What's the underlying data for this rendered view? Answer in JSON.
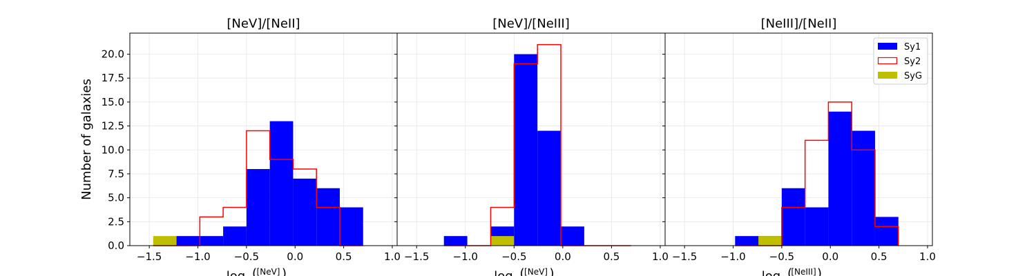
{
  "chart_data": [
    {
      "type": "bar",
      "title": "[NeV]/[NeII]",
      "ylabel": "Number of galaxies",
      "xlabel_prefix": "log",
      "xlabel_ratio": "[NeV]",
      "xlim": [
        -1.7,
        1.05
      ],
      "ylim": [
        0,
        22.2
      ],
      "xticks": [
        "−1.5",
        "−1.0",
        "−0.5",
        "0.0",
        "0.5",
        "1.0"
      ],
      "xtick_values": [
        -1.5,
        -1.0,
        -0.5,
        0.0,
        0.5,
        1.0
      ],
      "yticks": [
        "0.0",
        "2.5",
        "5.0",
        "7.5",
        "10.0",
        "12.5",
        "15.0",
        "17.5",
        "20.0"
      ],
      "ytick_values": [
        0,
        2.5,
        5,
        7.5,
        10,
        12.5,
        15,
        17.5,
        20
      ],
      "grid": true,
      "bin_edges": [
        -1.46,
        -1.22,
        -0.98,
        -0.74,
        -0.5,
        -0.26,
        -0.02,
        0.22,
        0.46,
        0.7
      ],
      "series": [
        {
          "name": "Sy1",
          "style": "filled",
          "color": "#0000ff",
          "values": [
            0,
            1,
            1,
            2,
            8,
            13,
            7,
            6,
            4
          ]
        },
        {
          "name": "Sy2",
          "style": "step",
          "color": "#ff0000",
          "values": [
            0,
            0,
            3,
            4,
            12,
            9,
            8,
            4,
            0
          ]
        },
        {
          "name": "SyG",
          "style": "filled",
          "color": "#bfbf00",
          "values": [
            1,
            0,
            0,
            0,
            0,
            0,
            0,
            0,
            0
          ]
        }
      ]
    },
    {
      "type": "bar",
      "title": "[NeV]/[NeIII]",
      "xlabel_prefix": "log",
      "xlabel_ratio": "[NeV]",
      "xlim": [
        -1.7,
        1.05
      ],
      "ylim": [
        0,
        22.2
      ],
      "xticks": [
        "−1.5",
        "−1.0",
        "−0.5",
        "0.0",
        "0.5",
        "1.0"
      ],
      "xtick_values": [
        -1.5,
        -1.0,
        -0.5,
        0.0,
        0.5,
        1.0
      ],
      "grid": true,
      "bin_edges": [
        -1.22,
        -0.98,
        -0.74,
        -0.5,
        -0.26,
        -0.02,
        0.22,
        0.46,
        0.7
      ],
      "series": [
        {
          "name": "Sy1",
          "style": "filled",
          "color": "#0000ff",
          "values": [
            1,
            0,
            2,
            20,
            12,
            2,
            0,
            0
          ]
        },
        {
          "name": "Sy2",
          "style": "step",
          "color": "#ff0000",
          "values": [
            0,
            0,
            4,
            19,
            21,
            0,
            0,
            0
          ]
        },
        {
          "name": "SyG",
          "style": "filled",
          "color": "#bfbf00",
          "values": [
            0,
            0,
            1,
            0,
            0,
            0,
            0,
            0
          ]
        }
      ]
    },
    {
      "type": "bar",
      "title": "[NeIII]/[NeII]",
      "xlabel_prefix": "log",
      "xlabel_ratio": "[NeIII]",
      "xlim": [
        -1.7,
        1.05
      ],
      "ylim": [
        0,
        22.2
      ],
      "xticks": [
        "−1.5",
        "−1.0",
        "−0.5",
        "0.0",
        "0.5",
        "1.0"
      ],
      "xtick_values": [
        -1.5,
        -1.0,
        -0.5,
        0.0,
        0.5,
        1.0
      ],
      "grid": true,
      "legend": "top-right",
      "legend_entries": [
        "Sy1",
        "Sy2",
        "SyG"
      ],
      "bin_edges": [
        -0.98,
        -0.74,
        -0.5,
        -0.26,
        -0.02,
        0.22,
        0.46,
        0.7
      ],
      "series": [
        {
          "name": "Sy1",
          "style": "filled",
          "color": "#0000ff",
          "values": [
            1,
            1,
            6,
            4,
            14,
            12,
            3
          ]
        },
        {
          "name": "Sy2",
          "style": "step",
          "color": "#ff0000",
          "values": [
            0,
            0,
            4,
            11,
            15,
            10,
            2
          ]
        },
        {
          "name": "SyG",
          "style": "filled",
          "color": "#bfbf00",
          "values": [
            0,
            1,
            0,
            0,
            0,
            0,
            0
          ]
        }
      ]
    }
  ]
}
